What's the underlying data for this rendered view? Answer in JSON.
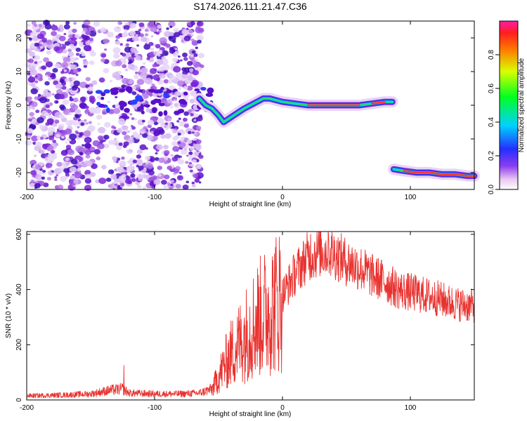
{
  "title": "S174.2026.111.21.47.C36",
  "chart_data": [
    {
      "type": "heatmap",
      "name": "spectrogram",
      "xlabel": "Height of straight line (km)",
      "ylabel": "Frequency (Hz)",
      "xlim": [
        -200,
        150
      ],
      "ylim": [
        -25,
        25
      ],
      "xticks": [
        -200,
        -100,
        0,
        100
      ],
      "yticks": [
        -20,
        -10,
        0,
        10,
        20
      ],
      "noise_region": [
        -200,
        -63
      ],
      "track": [
        {
          "x": -65,
          "y": 2
        },
        {
          "x": -60,
          "y": 0
        },
        {
          "x": -55,
          "y": -1
        },
        {
          "x": -50,
          "y": -3
        },
        {
          "x": -46,
          "y": -5
        },
        {
          "x": -42,
          "y": -4
        },
        {
          "x": -38,
          "y": -3
        },
        {
          "x": -34,
          "y": -2
        },
        {
          "x": -30,
          "y": -1
        },
        {
          "x": -25,
          "y": 0
        },
        {
          "x": -20,
          "y": 1
        },
        {
          "x": -15,
          "y": 2
        },
        {
          "x": -10,
          "y": 2
        },
        {
          "x": -5,
          "y": 1.5
        },
        {
          "x": 0,
          "y": 1
        },
        {
          "x": 10,
          "y": 0.5
        },
        {
          "x": 20,
          "y": 0
        },
        {
          "x": 30,
          "y": 0
        },
        {
          "x": 40,
          "y": 0
        },
        {
          "x": 50,
          "y": 0
        },
        {
          "x": 60,
          "y": 0
        },
        {
          "x": 70,
          "y": 0.5
        },
        {
          "x": 80,
          "y": 1
        },
        {
          "x": 86,
          "y": 1
        }
      ],
      "track2": [
        {
          "x": 87,
          "y": -19
        },
        {
          "x": 95,
          "y": -19.5
        },
        {
          "x": 105,
          "y": -20
        },
        {
          "x": 115,
          "y": -20
        },
        {
          "x": 125,
          "y": -20.5
        },
        {
          "x": 135,
          "y": -20.5
        },
        {
          "x": 145,
          "y": -21
        },
        {
          "x": 150,
          "y": -21
        }
      ],
      "colorbar": {
        "label": "Normalized spectral amplitude",
        "range": [
          0,
          1
        ],
        "ticks": [
          0.0,
          0.2,
          0.4,
          0.6,
          0.8
        ],
        "tick_labels": [
          "0.0",
          "0.2",
          "0.4",
          "0.6",
          "0.8"
        ]
      }
    },
    {
      "type": "line",
      "name": "snr",
      "xlabel": "Height of straight line (km)",
      "ylabel": "SNR (10 * v/v)",
      "xlim": [
        -200,
        150
      ],
      "ylim": [
        0,
        610
      ],
      "xticks": [
        -200,
        -100,
        0,
        100
      ],
      "yticks": [
        0,
        200,
        400,
        600
      ],
      "color": "#e8322f",
      "envelope": [
        {
          "x": -200,
          "y": 15
        },
        {
          "x": -170,
          "y": 18
        },
        {
          "x": -150,
          "y": 22
        },
        {
          "x": -135,
          "y": 35
        },
        {
          "x": -125,
          "y": 40
        },
        {
          "x": -120,
          "y": 25
        },
        {
          "x": -100,
          "y": 22
        },
        {
          "x": -80,
          "y": 22
        },
        {
          "x": -65,
          "y": 25
        },
        {
          "x": -55,
          "y": 40
        },
        {
          "x": -45,
          "y": 130
        },
        {
          "x": -40,
          "y": 170
        },
        {
          "x": -30,
          "y": 230
        },
        {
          "x": -20,
          "y": 290
        },
        {
          "x": -10,
          "y": 330
        },
        {
          "x": 0,
          "y": 380
        },
        {
          "x": 10,
          "y": 460
        },
        {
          "x": 20,
          "y": 520
        },
        {
          "x": 30,
          "y": 540
        },
        {
          "x": 40,
          "y": 530
        },
        {
          "x": 50,
          "y": 500
        },
        {
          "x": 60,
          "y": 480
        },
        {
          "x": 70,
          "y": 450
        },
        {
          "x": 80,
          "y": 430
        },
        {
          "x": 90,
          "y": 400
        },
        {
          "x": 100,
          "y": 390
        },
        {
          "x": 110,
          "y": 380
        },
        {
          "x": 120,
          "y": 370
        },
        {
          "x": 130,
          "y": 355
        },
        {
          "x": 140,
          "y": 345
        },
        {
          "x": 150,
          "y": 340
        }
      ],
      "spikes": [
        {
          "x": -124,
          "y": 125
        },
        {
          "x": 22,
          "y": 600
        },
        {
          "x": 36,
          "y": 600
        }
      ]
    }
  ]
}
